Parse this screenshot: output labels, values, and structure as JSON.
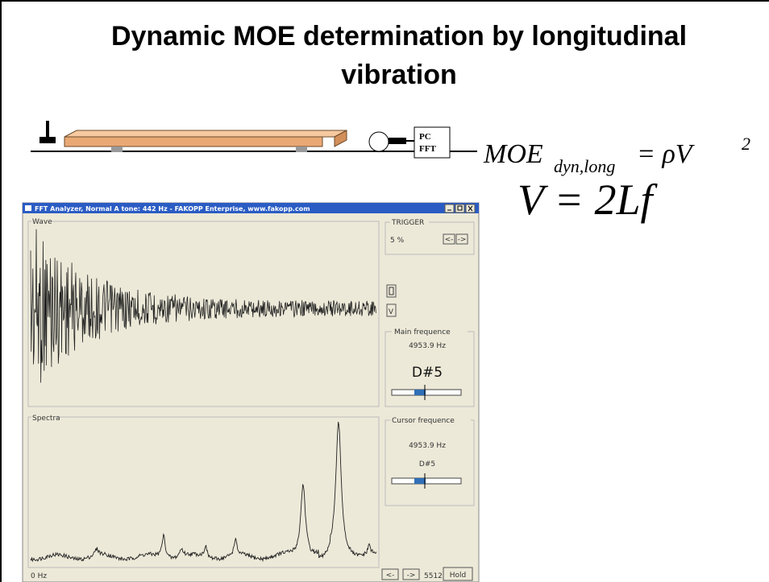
{
  "title_lines": [
    "Dynamic MOE determination by longitudinal",
    "vibration"
  ],
  "diagram": {
    "pc_label": "PC",
    "fft_label": "FFT"
  },
  "formulas": {
    "moe": "MOE",
    "moe_subscript": "dyn,long",
    "moe_rhs": "= ρV",
    "moe_exponent": "2",
    "velocity": "V = 2Lf"
  },
  "window": {
    "title": "FFT Analyzer, Normal A tone: 442 Hz - FAKOPP Enterprise, www.fakopp.com",
    "wave_label": "Wave",
    "trigger_label": "TRIGGER",
    "trigger_value": "5 %",
    "trigger_buttons": [
      "<-",
      "->"
    ],
    "mode_button": "V",
    "main_frequence": {
      "label": "Main frequence",
      "value": "4953.9 Hz",
      "note": "D#5"
    },
    "spectra_label": "Spectra",
    "cursor_frequence": {
      "label": "Cursor frequence",
      "value": "4953.9 Hz",
      "note": "D#5"
    },
    "x_start": "0 Hz",
    "x_end": "5512 Hz",
    "nav_buttons": [
      "<-",
      "->"
    ],
    "hold": "Hold"
  }
}
